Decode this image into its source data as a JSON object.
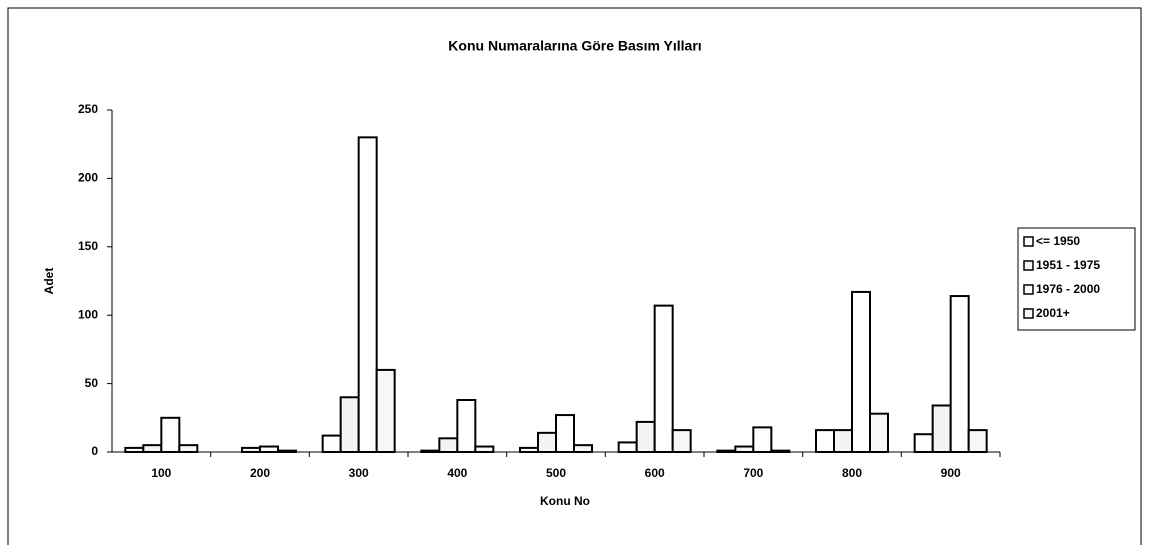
{
  "chart_data": {
    "type": "bar",
    "title": "Konu Numaralarına Göre Basım Yılları",
    "x_label": "Konu No",
    "y_label": "Adet",
    "categories": [
      "100",
      "200",
      "300",
      "400",
      "500",
      "600",
      "700",
      "800",
      "900"
    ],
    "series": [
      {
        "name": "<= 1950",
        "color": "#ffffff",
        "values": [
          3,
          0,
          12,
          1,
          3,
          7,
          1,
          16,
          13
        ]
      },
      {
        "name": "1951 - 1975",
        "color": "#f4f4f4",
        "values": [
          5,
          3,
          40,
          10,
          14,
          22,
          4,
          16,
          34
        ]
      },
      {
        "name": "1976 - 2000",
        "color": "#ffffff",
        "values": [
          25,
          4,
          230,
          38,
          27,
          107,
          18,
          117,
          114
        ]
      },
      {
        "name": "2001+",
        "color": "#f7f7f7",
        "values": [
          5,
          1,
          60,
          4,
          5,
          16,
          1,
          28,
          16
        ]
      }
    ],
    "ylim": [
      0,
      250
    ],
    "yticks": [
      0,
      50,
      100,
      150,
      200,
      250
    ],
    "grid": false,
    "legend": "right"
  }
}
